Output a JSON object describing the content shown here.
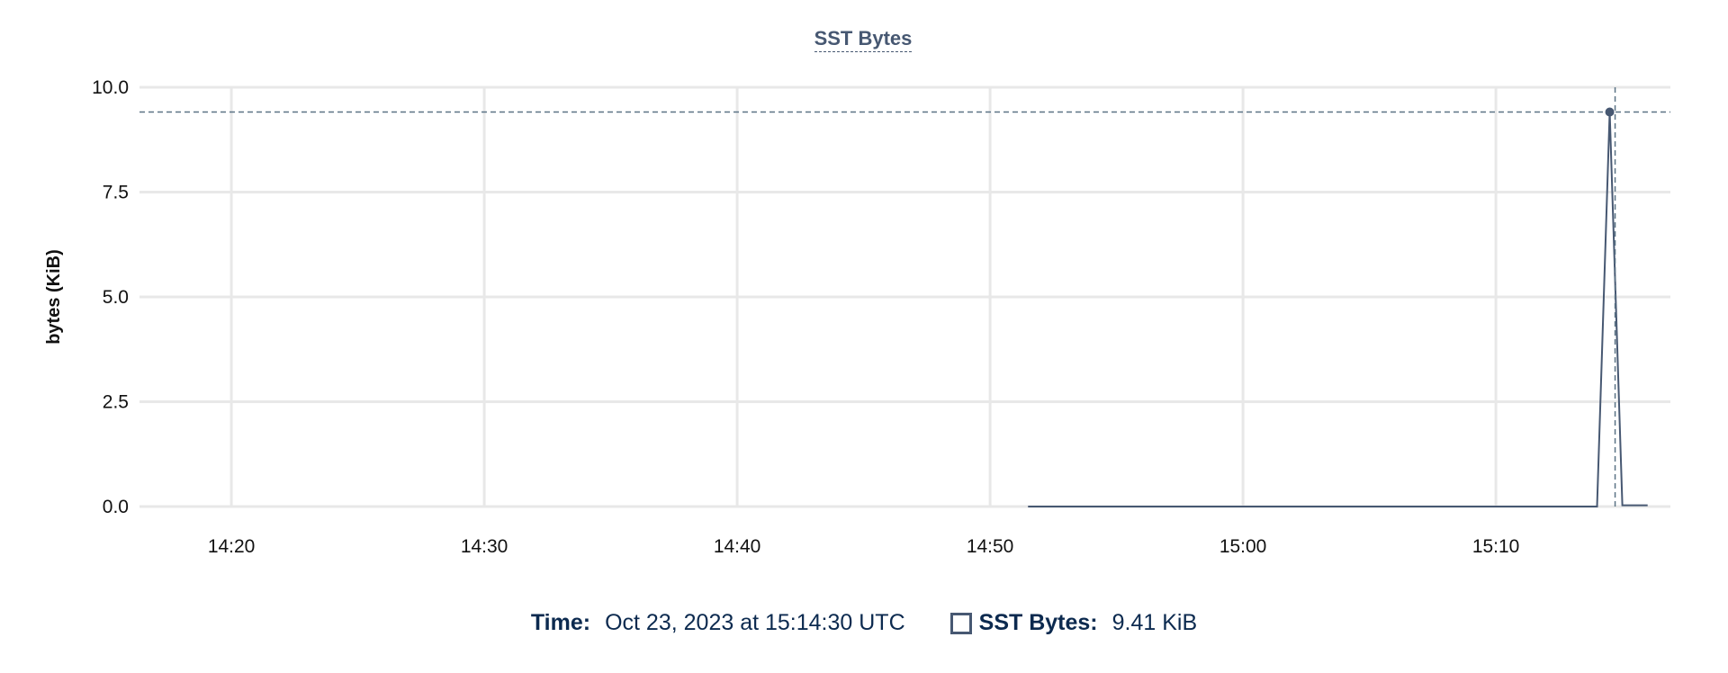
{
  "chart_data": {
    "type": "line",
    "title": "SST Bytes",
    "ylabel": "bytes (KiB)",
    "xlabel": "",
    "ylim": [
      0,
      10
    ],
    "yticks": [
      "0.0",
      "2.5",
      "5.0",
      "7.5",
      "10.0"
    ],
    "xlim": [
      "14:16:22",
      "15:16:54"
    ],
    "xticks": [
      "14:20",
      "14:30",
      "14:40",
      "14:50",
      "15:00",
      "15:10"
    ],
    "grid": true,
    "series": [
      {
        "name": "SST Bytes",
        "color": "#475872",
        "points": [
          [
            "14:51:30",
            0
          ],
          [
            "15:14:00",
            0
          ],
          [
            "15:14:30",
            9.41
          ],
          [
            "15:15:00",
            0.03
          ],
          [
            "15:16:00",
            0.03
          ]
        ]
      }
    ],
    "hover": {
      "time": "15:14:30",
      "value": 9.41
    }
  },
  "legend": {
    "time_label": "Time:",
    "time_value": "Oct 23, 2023 at 15:14:30 UTC",
    "series_label": "SST Bytes:",
    "series_value": "9.41 KiB"
  }
}
